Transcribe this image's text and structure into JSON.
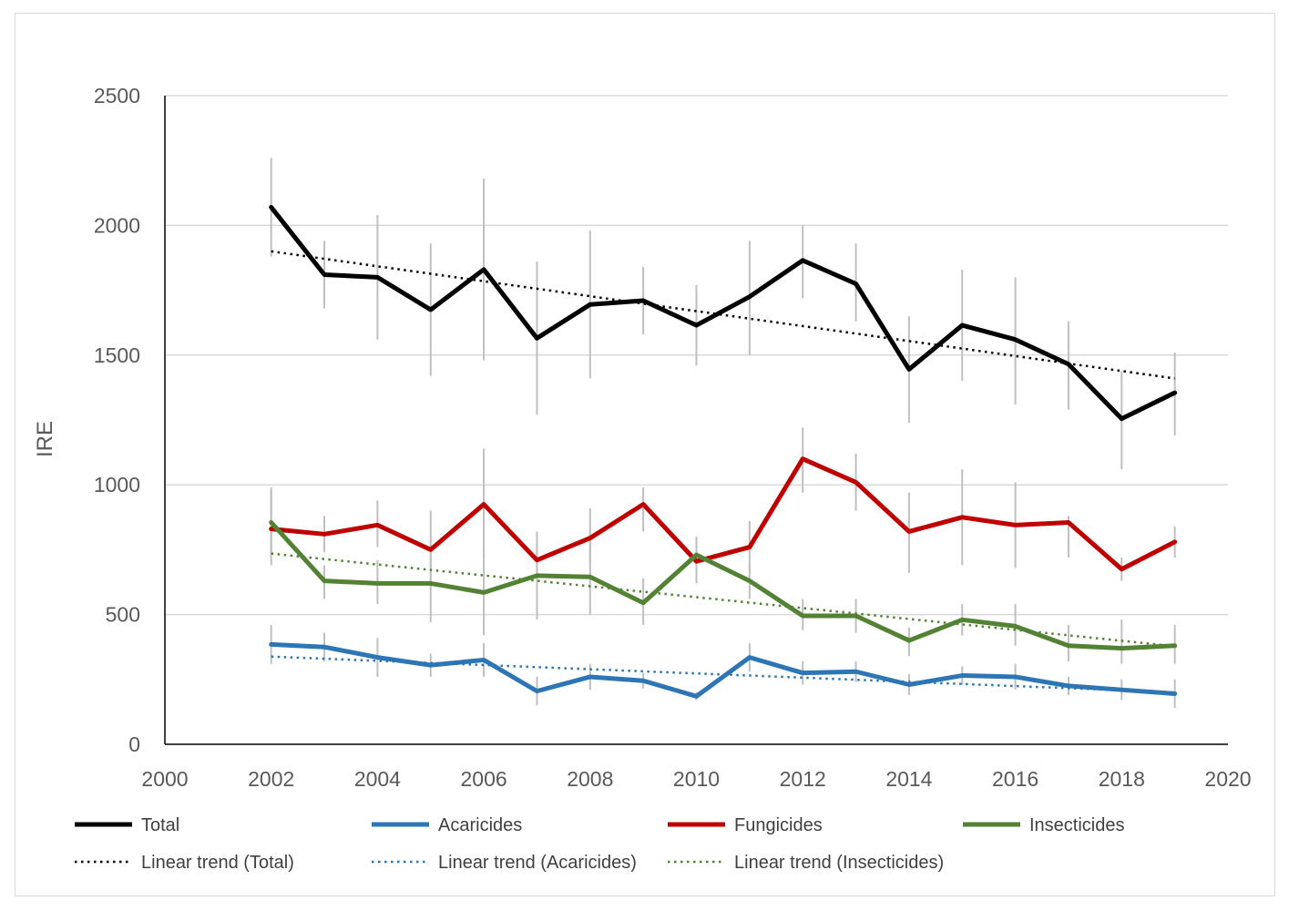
{
  "chart_data": {
    "type": "line",
    "title": "",
    "xlabel": "",
    "ylabel": "IRE",
    "xlim": [
      2000,
      2020
    ],
    "ylim": [
      0,
      2500
    ],
    "xticks": [
      2000,
      2002,
      2004,
      2006,
      2008,
      2010,
      2012,
      2014,
      2016,
      2018,
      2020
    ],
    "yticks": [
      0,
      500,
      1000,
      1500,
      2000,
      2500
    ],
    "grid": "horizontal",
    "legend_position": "bottom",
    "x": [
      2002,
      2003,
      2004,
      2005,
      2006,
      2007,
      2008,
      2009,
      2010,
      2011,
      2012,
      2013,
      2014,
      2015,
      2016,
      2017,
      2018,
      2019
    ],
    "series": [
      {
        "name": "Total",
        "color": "#000000",
        "values": [
          2070,
          1810,
          1800,
          1675,
          1830,
          1565,
          1695,
          1710,
          1615,
          1725,
          1865,
          1775,
          1445,
          1615,
          1560,
          1465,
          1255,
          1355
        ],
        "error_low": [
          1880,
          1680,
          1560,
          1420,
          1480,
          1270,
          1410,
          1580,
          1460,
          1500,
          1720,
          1630,
          1240,
          1400,
          1310,
          1290,
          1060,
          1190
        ],
        "error_high": [
          2260,
          1940,
          2040,
          1930,
          2180,
          1860,
          1980,
          1840,
          1770,
          1940,
          2000,
          1930,
          1650,
          1830,
          1800,
          1630,
          1440,
          1510
        ]
      },
      {
        "name": "Acaricides",
        "color": "#2e75b6",
        "values": [
          385,
          375,
          335,
          305,
          325,
          205,
          260,
          245,
          185,
          335,
          275,
          280,
          230,
          265,
          260,
          225,
          210,
          195
        ],
        "error_low": [
          310,
          320,
          260,
          260,
          260,
          150,
          210,
          215,
          170,
          280,
          230,
          240,
          190,
          230,
          210,
          190,
          170,
          140
        ],
        "error_high": [
          460,
          430,
          410,
          350,
          390,
          260,
          310,
          275,
          200,
          390,
          320,
          320,
          270,
          300,
          310,
          260,
          250,
          250
        ]
      },
      {
        "name": "Fungicides",
        "color": "#c00000",
        "values": [
          830,
          810,
          845,
          750,
          925,
          710,
          795,
          925,
          705,
          760,
          1100,
          1010,
          820,
          875,
          845,
          855,
          675,
          780
        ],
        "error_low": [
          690,
          740,
          760,
          600,
          720,
          640,
          700,
          820,
          620,
          660,
          970,
          900,
          660,
          690,
          680,
          720,
          630,
          720
        ],
        "error_high": [
          980,
          880,
          940,
          900,
          1140,
          820,
          910,
          990,
          800,
          860,
          1220,
          1120,
          970,
          1060,
          1010,
          880,
          720,
          840
        ]
      },
      {
        "name": "Insecticides",
        "color": "#548235",
        "values": [
          855,
          630,
          620,
          620,
          585,
          650,
          645,
          545,
          730,
          630,
          495,
          495,
          400,
          480,
          455,
          380,
          370,
          380
        ],
        "error_low": [
          730,
          560,
          540,
          470,
          420,
          480,
          500,
          460,
          640,
          560,
          440,
          430,
          340,
          420,
          380,
          320,
          310,
          310
        ],
        "error_high": [
          990,
          690,
          710,
          770,
          740,
          810,
          790,
          640,
          800,
          700,
          560,
          560,
          450,
          540,
          540,
          460,
          480,
          460
        ]
      }
    ],
    "trendlines": [
      {
        "name": "Linear trend (Total)",
        "color": "#000000",
        "x": [
          2002,
          2019
        ],
        "values": [
          1900,
          1410
        ]
      },
      {
        "name": "Linear trend (Acaricides)",
        "color": "#2e75b6",
        "x": [
          2002,
          2019
        ],
        "values": [
          338,
          200
        ]
      },
      {
        "name": "Linear trend (Insecticides)",
        "color": "#548235",
        "x": [
          2002,
          2019
        ],
        "values": [
          735,
          378
        ]
      }
    ],
    "error_bar_color": "#bfbfbf",
    "legend": [
      {
        "label": "Total",
        "color": "#000000",
        "style": "solid"
      },
      {
        "label": "Acaricides",
        "color": "#2e75b6",
        "style": "solid"
      },
      {
        "label": "Fungicides",
        "color": "#c00000",
        "style": "solid"
      },
      {
        "label": "Insecticides",
        "color": "#548235",
        "style": "solid"
      },
      {
        "label": "Linear trend (Total)",
        "color": "#000000",
        "style": "dotted"
      },
      {
        "label": "Linear trend (Acaricides)",
        "color": "#2e75b6",
        "style": "dotted"
      },
      {
        "label": "Linear trend (Insecticides)",
        "color": "#548235",
        "style": "dotted"
      }
    ]
  }
}
